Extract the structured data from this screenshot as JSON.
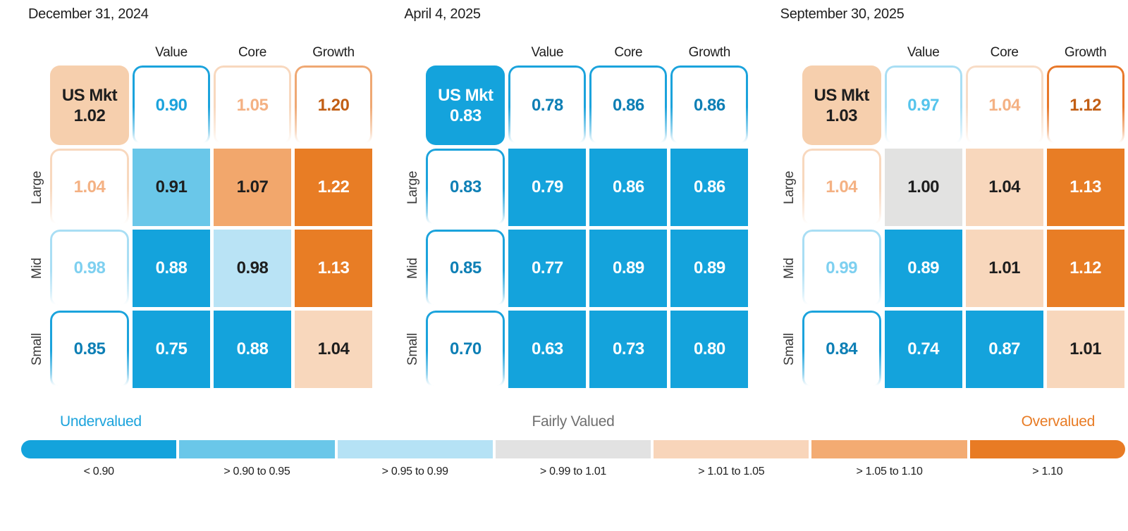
{
  "chart_data": {
    "type": "heatmap",
    "columns": [
      "Value",
      "Core",
      "Growth"
    ],
    "rows": [
      "Large",
      "Mid",
      "Small"
    ],
    "panels": [
      {
        "date": "December 31, 2024",
        "us_mkt": 1.02,
        "column_summary": [
          0.9,
          1.05,
          1.2
        ],
        "row_summary": [
          1.04,
          0.98,
          0.85
        ],
        "values": [
          [
            0.91,
            1.07,
            1.22
          ],
          [
            0.88,
            0.98,
            1.13
          ],
          [
            0.75,
            0.88,
            1.04
          ]
        ]
      },
      {
        "date": "April 4, 2025",
        "us_mkt": 0.83,
        "column_summary": [
          0.78,
          0.86,
          0.86
        ],
        "row_summary": [
          0.83,
          0.85,
          0.7
        ],
        "values": [
          [
            0.79,
            0.86,
            0.86
          ],
          [
            0.77,
            0.89,
            0.89
          ],
          [
            0.63,
            0.73,
            0.8
          ]
        ]
      },
      {
        "date": "September 30, 2025",
        "us_mkt": 1.03,
        "column_summary": [
          0.97,
          1.04,
          1.12
        ],
        "row_summary": [
          1.04,
          0.99,
          0.84
        ],
        "values": [
          [
            1.0,
            1.04,
            1.13
          ],
          [
            0.89,
            1.01,
            1.12
          ],
          [
            0.74,
            0.87,
            1.01
          ]
        ]
      }
    ],
    "legend_bins": [
      "< 0.90",
      "> 0.90 to 0.95",
      "> 0.95 to 0.99",
      "> 0.99 to 1.01",
      "> 1.01 to 1.05",
      "> 1.05 to 1.10",
      "> 1.10"
    ],
    "legend_bin_colors": [
      "#14A3DC",
      "#6AC7E9",
      "#B5E2F5",
      "#E2E2E2",
      "#F8D5BA",
      "#F3AB72",
      "#E87B24"
    ],
    "legend_labels": [
      "Undervalued",
      "Fairly Valued",
      "Overvalued"
    ]
  },
  "panels": [
    {
      "date": "December 31, 2024",
      "col_headers": [
        "Value",
        "Core",
        "Growth"
      ],
      "us_mkt": {
        "label": "US Mkt",
        "value": "1.02",
        "bg": "#F6CFAD",
        "fg": "#1E1E1E"
      },
      "col_summaries": [
        {
          "value": "0.90",
          "fg": "#1BA3DC",
          "border": "#1BA3DC"
        },
        {
          "value": "1.05",
          "fg": "#F4B183",
          "border": "#F8D8BE"
        },
        {
          "value": "1.20",
          "fg": "#C25E14",
          "border": "#EFA873"
        }
      ],
      "rows": [
        {
          "label": "Large",
          "summary": {
            "value": "1.04",
            "fg": "#F4B183",
            "border": "#F8D8BE"
          },
          "cells": [
            {
              "value": "0.91",
              "bg": "#6AC7E9",
              "fg": "#1E1E1E"
            },
            {
              "value": "1.07",
              "bg": "#F2A76C",
              "fg": "#1E1E1E"
            },
            {
              "value": "1.22",
              "bg": "#E87D25",
              "fg": "#FFFFFF"
            }
          ]
        },
        {
          "label": "Mid",
          "summary": {
            "value": "0.98",
            "fg": "#7ED0F0",
            "border": "#A9DEF4"
          },
          "cells": [
            {
              "value": "0.88",
              "bg": "#14A3DC",
              "fg": "#FFFFFF"
            },
            {
              "value": "0.98",
              "bg": "#B9E3F5",
              "fg": "#1E1E1E"
            },
            {
              "value": "1.13",
              "bg": "#E87D25",
              "fg": "#FFFFFF"
            }
          ]
        },
        {
          "label": "Small",
          "summary": {
            "value": "0.85",
            "fg": "#0D7FB5",
            "border": "#1BA3DC"
          },
          "cells": [
            {
              "value": "0.75",
              "bg": "#14A3DC",
              "fg": "#FFFFFF"
            },
            {
              "value": "0.88",
              "bg": "#14A3DC",
              "fg": "#FFFFFF"
            },
            {
              "value": "1.04",
              "bg": "#F8D7BC",
              "fg": "#1E1E1E"
            }
          ]
        }
      ]
    },
    {
      "date": "April 4, 2025",
      "col_headers": [
        "Value",
        "Core",
        "Growth"
      ],
      "us_mkt": {
        "label": "US Mkt",
        "value": "0.83",
        "bg": "#14A3DC",
        "fg": "#FFFFFF"
      },
      "col_summaries": [
        {
          "value": "0.78",
          "fg": "#0D7FB5",
          "border": "#1BA3DC"
        },
        {
          "value": "0.86",
          "fg": "#0D7FB5",
          "border": "#1BA3DC"
        },
        {
          "value": "0.86",
          "fg": "#0D7FB5",
          "border": "#1BA3DC"
        }
      ],
      "rows": [
        {
          "label": "Large",
          "summary": {
            "value": "0.83",
            "fg": "#0D7FB5",
            "border": "#1BA3DC"
          },
          "cells": [
            {
              "value": "0.79",
              "bg": "#14A3DC",
              "fg": "#FFFFFF"
            },
            {
              "value": "0.86",
              "bg": "#14A3DC",
              "fg": "#FFFFFF"
            },
            {
              "value": "0.86",
              "bg": "#14A3DC",
              "fg": "#FFFFFF"
            }
          ]
        },
        {
          "label": "Mid",
          "summary": {
            "value": "0.85",
            "fg": "#0D7FB5",
            "border": "#1BA3DC"
          },
          "cells": [
            {
              "value": "0.77",
              "bg": "#14A3DC",
              "fg": "#FFFFFF"
            },
            {
              "value": "0.89",
              "bg": "#14A3DC",
              "fg": "#FFFFFF"
            },
            {
              "value": "0.89",
              "bg": "#14A3DC",
              "fg": "#FFFFFF"
            }
          ]
        },
        {
          "label": "Small",
          "summary": {
            "value": "0.70",
            "fg": "#0D7FB5",
            "border": "#1BA3DC"
          },
          "cells": [
            {
              "value": "0.63",
              "bg": "#14A3DC",
              "fg": "#FFFFFF"
            },
            {
              "value": "0.73",
              "bg": "#14A3DC",
              "fg": "#FFFFFF"
            },
            {
              "value": "0.80",
              "bg": "#14A3DC",
              "fg": "#FFFFFF"
            }
          ]
        }
      ]
    },
    {
      "date": "September 30, 2025",
      "col_headers": [
        "Value",
        "Core",
        "Growth"
      ],
      "us_mkt": {
        "label": "US Mkt",
        "value": "1.03",
        "bg": "#F6CFAD",
        "fg": "#1E1E1E"
      },
      "col_summaries": [
        {
          "value": "0.97",
          "fg": "#55C4EC",
          "border": "#A9DEF4"
        },
        {
          "value": "1.04",
          "fg": "#F4B183",
          "border": "#F8DCC6"
        },
        {
          "value": "1.12",
          "fg": "#C25E14",
          "border": "#E8782A"
        }
      ],
      "rows": [
        {
          "label": "Large",
          "summary": {
            "value": "1.04",
            "fg": "#F4B183",
            "border": "#F8D8BE"
          },
          "cells": [
            {
              "value": "1.00",
              "bg": "#E2E2E1",
              "fg": "#1E1E1E"
            },
            {
              "value": "1.04",
              "bg": "#F8D7BC",
              "fg": "#1E1E1E"
            },
            {
              "value": "1.13",
              "bg": "#E87D25",
              "fg": "#FFFFFF"
            }
          ]
        },
        {
          "label": "Mid",
          "summary": {
            "value": "0.99",
            "fg": "#7ED0F0",
            "border": "#A9DEF4"
          },
          "cells": [
            {
              "value": "0.89",
              "bg": "#14A3DC",
              "fg": "#FFFFFF"
            },
            {
              "value": "1.01",
              "bg": "#F8D7BC",
              "fg": "#1E1E1E"
            },
            {
              "value": "1.12",
              "bg": "#E87D25",
              "fg": "#FFFFFF"
            }
          ]
        },
        {
          "label": "Small",
          "summary": {
            "value": "0.84",
            "fg": "#0D7FB5",
            "border": "#1BA3DC"
          },
          "cells": [
            {
              "value": "0.74",
              "bg": "#14A3DC",
              "fg": "#FFFFFF"
            },
            {
              "value": "0.87",
              "bg": "#14A3DC",
              "fg": "#FFFFFF"
            },
            {
              "value": "1.01",
              "bg": "#F8D7BC",
              "fg": "#1E1E1E"
            }
          ]
        }
      ]
    }
  ],
  "legend": {
    "undervalued": {
      "label": "Undervalued",
      "color": "#1BA3DC"
    },
    "fairly": {
      "label": "Fairly Valued",
      "color": "#6F6F6F"
    },
    "overvalued": {
      "label": "Overvalued",
      "color": "#E87B24"
    },
    "segments": [
      {
        "color": "#14A3DC",
        "range": "< 0.90"
      },
      {
        "color": "#6AC7E9",
        "range": "> 0.90 to 0.95"
      },
      {
        "color": "#B5E2F5",
        "range": "> 0.95 to 0.99"
      },
      {
        "color": "#E2E2E2",
        "range": "> 0.99 to 1.01"
      },
      {
        "color": "#F8D5BA",
        "range": "> 1.01 to 1.05"
      },
      {
        "color": "#F3AB72",
        "range": "> 1.05 to 1.10"
      },
      {
        "color": "#E87B24",
        "range": "> 1.10"
      }
    ]
  }
}
